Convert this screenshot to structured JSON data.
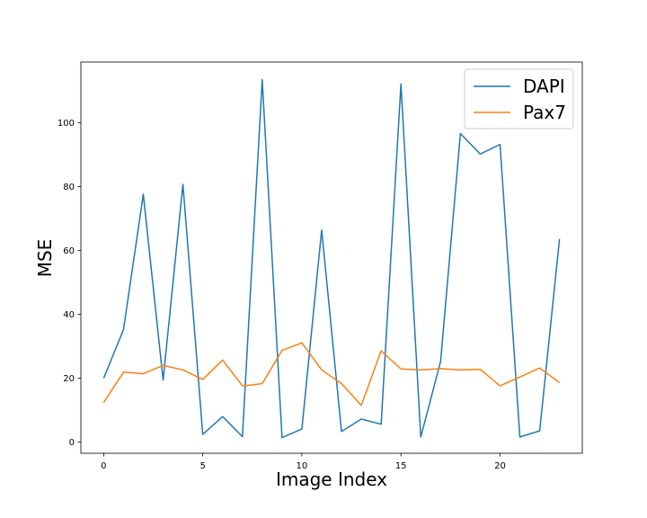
{
  "chart_data": {
    "type": "line",
    "xlabel": "Image Index",
    "ylabel": "MSE",
    "xlim": [
      -1.15,
      24.15
    ],
    "ylim": [
      -3.5,
      119
    ],
    "xticks": [
      0,
      5,
      10,
      15,
      20
    ],
    "yticks": [
      0,
      20,
      40,
      60,
      80,
      100
    ],
    "x": [
      0,
      1,
      2,
      3,
      4,
      5,
      6,
      7,
      8,
      9,
      10,
      11,
      12,
      13,
      14,
      15,
      16,
      17,
      18,
      19,
      20,
      21,
      22,
      23
    ],
    "legend_position": "top-right",
    "grid": false,
    "series": [
      {
        "name": "DAPI",
        "color": "#1f77b4",
        "values": [
          20.0,
          35.2,
          77.6,
          19.4,
          80.7,
          2.4,
          8.0,
          1.7,
          113.5,
          1.4,
          4.1,
          66.4,
          3.3,
          7.2,
          5.6,
          112.1,
          1.6,
          25.2,
          96.6,
          90.2,
          93.2,
          1.6,
          3.5,
          63.6
        ]
      },
      {
        "name": "Pax7",
        "color": "#ff7f0e",
        "values": [
          12.4,
          21.9,
          21.4,
          24.0,
          22.6,
          19.6,
          25.7,
          17.6,
          18.3,
          28.7,
          31.1,
          22.6,
          18.3,
          11.5,
          28.6,
          22.9,
          22.6,
          23.0,
          22.6,
          22.8,
          17.6,
          20.4,
          23.2,
          18.6
        ]
      }
    ]
  }
}
